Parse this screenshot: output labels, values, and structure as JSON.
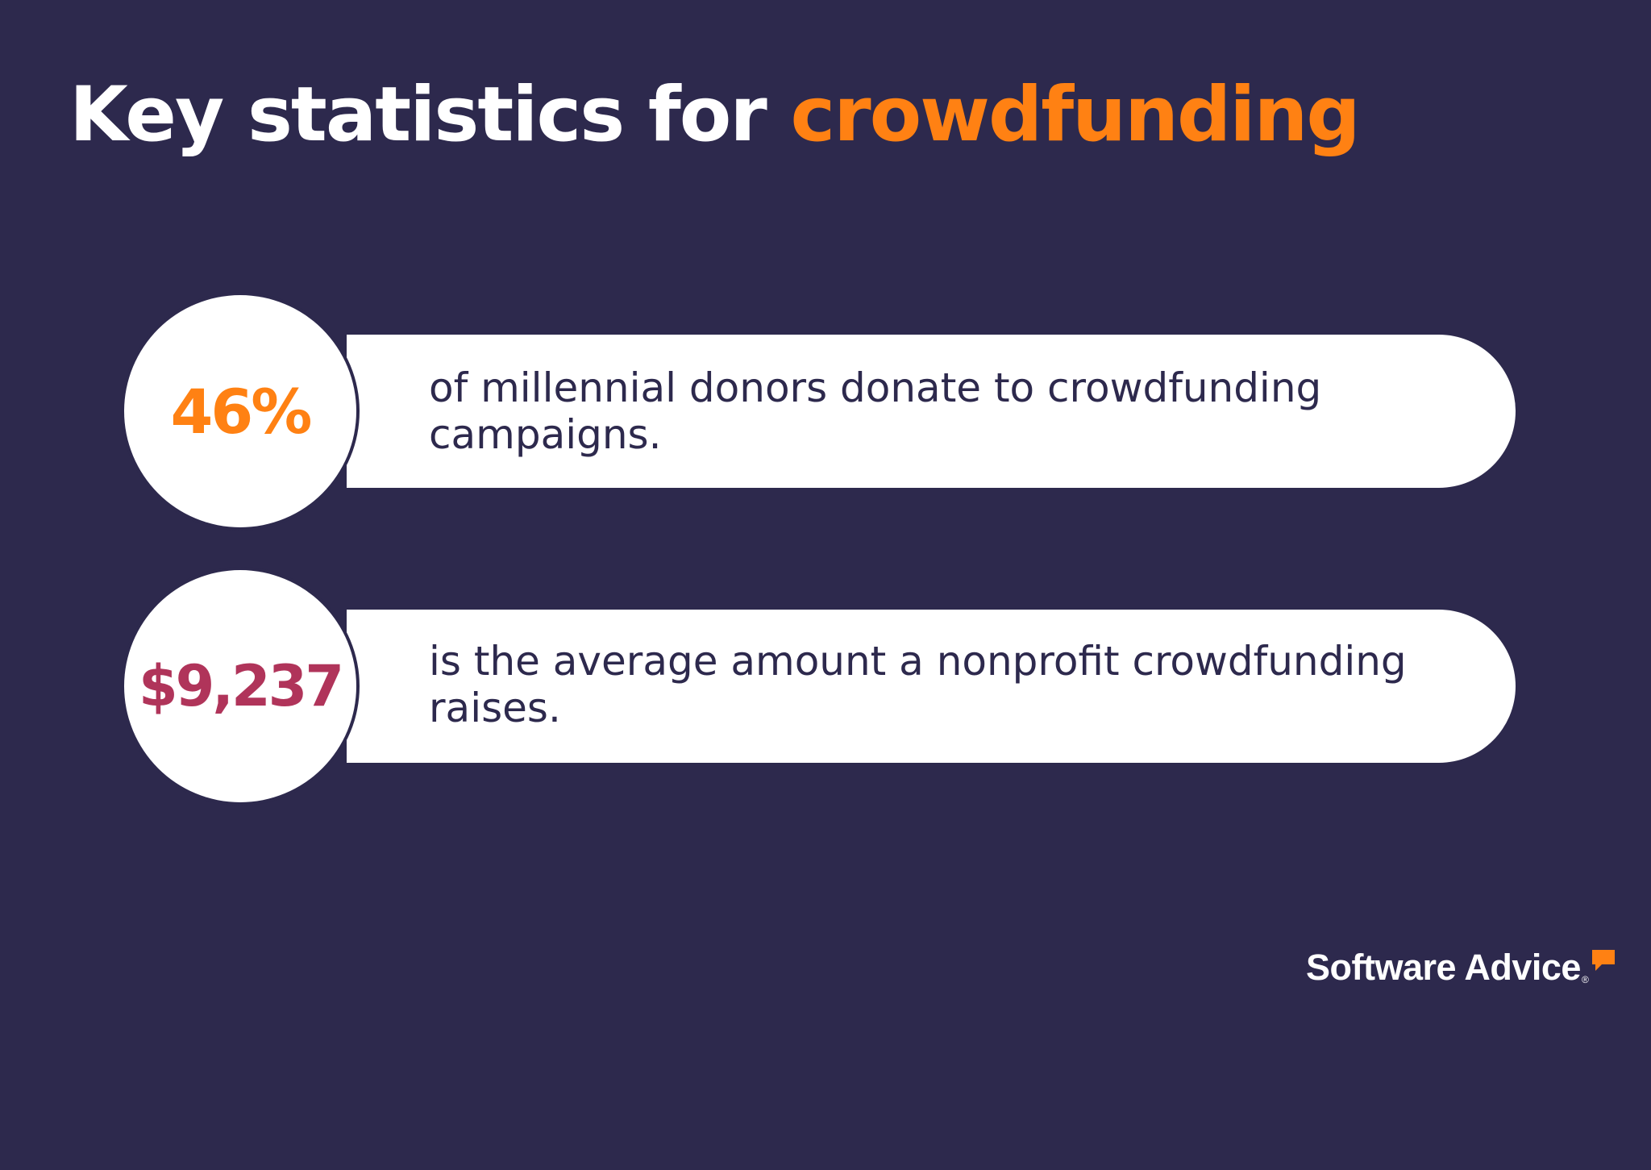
{
  "title": {
    "prefix": "Key statistics for ",
    "highlight": "crowdfunding"
  },
  "stats": [
    {
      "value": "46%",
      "text": "of millennial donors donate to crowdfunding campaigns."
    },
    {
      "value": "$9,237",
      "text": "is the average amount a nonprofit crowdfunding raises."
    }
  ],
  "brand": {
    "name": "Software Advice",
    "icon": "speech-bubble-icon"
  },
  "colors": {
    "background": "#2d294d",
    "accent_orange": "#ff8113",
    "accent_crimson": "#b0345a",
    "card": "#ffffff"
  }
}
